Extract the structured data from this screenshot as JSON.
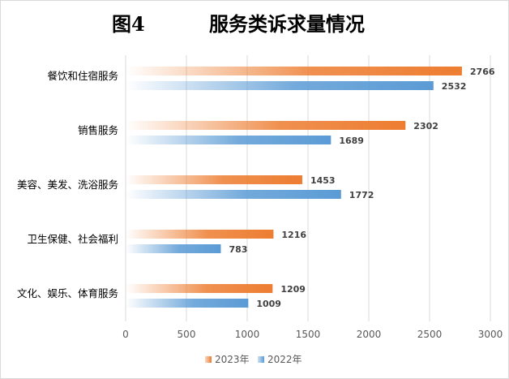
{
  "title": {
    "figure_label": "图4",
    "main": "服务类诉求量情况"
  },
  "colors": {
    "series_2023": "#ed7d31",
    "series_2022": "#5b9bd5",
    "grid": "#d9d9d9",
    "axis_text": "#595959"
  },
  "chart_data": {
    "type": "bar",
    "orientation": "horizontal",
    "categories": [
      "餐饮和住宿服务",
      "销售服务",
      "美容、美发、洗浴服务",
      "卫生保健、社会福利",
      "文化、娱乐、体育服务"
    ],
    "series": [
      {
        "name": "2023年",
        "values": [
          2766,
          2302,
          1453,
          1216,
          1209
        ]
      },
      {
        "name": "2022年",
        "values": [
          2532,
          1689,
          1772,
          783,
          1009
        ]
      }
    ],
    "xlim": [
      0,
      3000
    ],
    "xticks": [
      0,
      500,
      1000,
      1500,
      2000,
      2500,
      3000
    ],
    "grid": true,
    "legend": "bottom",
    "data_labels": true
  }
}
